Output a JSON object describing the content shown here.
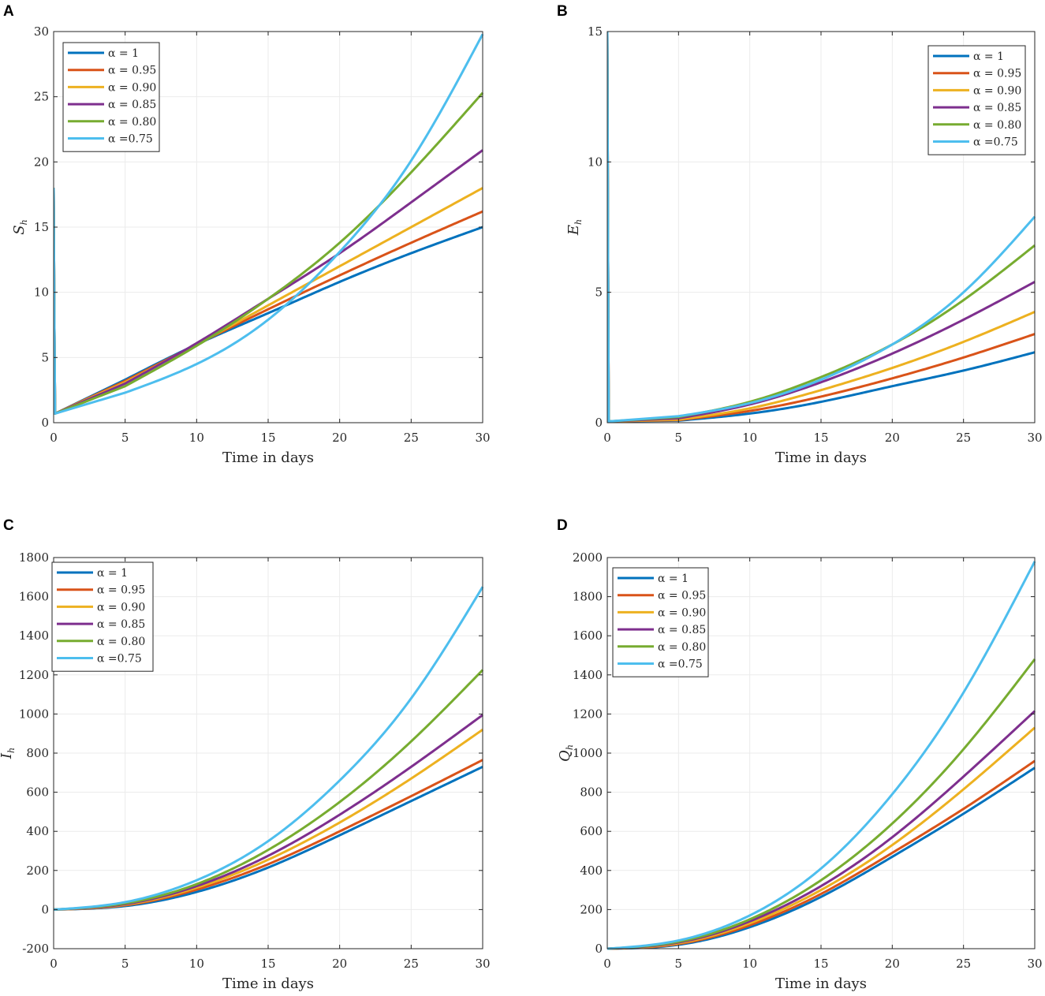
{
  "chart_data": [
    {
      "panel": "A",
      "type": "line",
      "xlabel": "Time in days",
      "ylabel": "S",
      "ylabel_sub": "h",
      "xlim": [
        0,
        30
      ],
      "ylim": [
        0,
        30
      ],
      "xticks": [
        "0",
        "5",
        "10",
        "15",
        "20",
        "25",
        "30"
      ],
      "yticks": [
        "0",
        "5",
        "10",
        "15",
        "20",
        "25",
        "30"
      ],
      "legend_position": "top-left",
      "series": [
        {
          "name": "α = 1",
          "color": "#0072BD",
          "x": [
            0,
            0.05,
            0.1,
            5,
            10,
            15,
            20,
            25,
            30
          ],
          "y": [
            18,
            8,
            0.7,
            3.3,
            6.0,
            8.4,
            10.8,
            13.0,
            15.0
          ]
        },
        {
          "name": "α = 0.95",
          "color": "#D95319",
          "x": [
            0,
            0.05,
            0.1,
            5,
            10,
            15,
            20,
            25,
            30
          ],
          "y": [
            18,
            8,
            0.7,
            3.2,
            6.0,
            8.7,
            11.3,
            13.8,
            16.2
          ]
        },
        {
          "name": "α = 0.90",
          "color": "#EDB120",
          "x": [
            0,
            0.05,
            0.1,
            5,
            10,
            15,
            20,
            25,
            30
          ],
          "y": [
            18,
            8,
            0.7,
            3.1,
            6.0,
            9.0,
            12.0,
            15.0,
            18.0
          ]
        },
        {
          "name": "α = 0.85",
          "color": "#7E2F8E",
          "x": [
            0,
            0.05,
            0.1,
            5,
            10,
            15,
            20,
            25,
            30
          ],
          "y": [
            18,
            8,
            0.7,
            3.0,
            6.1,
            9.5,
            13.0,
            16.9,
            20.9
          ]
        },
        {
          "name": "α = 0.80",
          "color": "#77AC30",
          "x": [
            0,
            0.05,
            0.1,
            5,
            10,
            15,
            20,
            25,
            30
          ],
          "y": [
            18,
            8,
            0.7,
            2.8,
            5.9,
            9.5,
            13.8,
            19.2,
            25.3
          ]
        },
        {
          "name": "α =0.75",
          "color": "#4DBEEE",
          "x": [
            0,
            0.05,
            0.1,
            5,
            10,
            15,
            20,
            25,
            30
          ],
          "y": [
            18,
            8,
            0.7,
            2.3,
            4.5,
            7.9,
            13.1,
            20.1,
            29.8
          ]
        }
      ]
    },
    {
      "panel": "B",
      "type": "line",
      "xlabel": "Time in days",
      "ylabel": "E",
      "ylabel_sub": "h",
      "xlim": [
        0,
        30
      ],
      "ylim": [
        0,
        15
      ],
      "xticks": [
        "0",
        "5",
        "10",
        "15",
        "20",
        "25",
        "30"
      ],
      "yticks": [
        "0",
        "5",
        "10",
        "15"
      ],
      "legend_position": "top-right",
      "series": [
        {
          "name": "α = 1",
          "color": "#0072BD",
          "x": [
            0,
            0.05,
            0.1,
            5,
            10,
            15,
            20,
            25,
            30
          ],
          "y": [
            15,
            7,
            0.05,
            0.08,
            0.35,
            0.8,
            1.4,
            2.0,
            2.7
          ]
        },
        {
          "name": "α = 0.95",
          "color": "#D95319",
          "x": [
            0,
            0.05,
            0.1,
            5,
            10,
            15,
            20,
            25,
            30
          ],
          "y": [
            15,
            7,
            0.05,
            0.1,
            0.45,
            1.0,
            1.7,
            2.5,
            3.4
          ]
        },
        {
          "name": "α = 0.90",
          "color": "#EDB120",
          "x": [
            0,
            0.05,
            0.1,
            5,
            10,
            15,
            20,
            25,
            30
          ],
          "y": [
            15,
            7,
            0.05,
            0.12,
            0.55,
            1.25,
            2.1,
            3.1,
            4.25
          ]
        },
        {
          "name": "α = 0.85",
          "color": "#7E2F8E",
          "x": [
            0,
            0.05,
            0.1,
            5,
            10,
            15,
            20,
            25,
            30
          ],
          "y": [
            15,
            7,
            0.05,
            0.17,
            0.7,
            1.55,
            2.65,
            3.95,
            5.4
          ]
        },
        {
          "name": "α = 0.80",
          "color": "#77AC30",
          "x": [
            0,
            0.05,
            0.1,
            5,
            10,
            15,
            20,
            25,
            30
          ],
          "y": [
            15,
            7,
            0.05,
            0.22,
            0.8,
            1.75,
            3.0,
            4.7,
            6.8
          ]
        },
        {
          "name": "α =0.75",
          "color": "#4DBEEE",
          "x": [
            0,
            0.05,
            0.1,
            5,
            10,
            15,
            20,
            25,
            30
          ],
          "y": [
            15,
            7,
            0.05,
            0.25,
            0.75,
            1.65,
            3.0,
            5.0,
            7.9
          ]
        }
      ]
    },
    {
      "panel": "C",
      "type": "line",
      "xlabel": "Time in days",
      "ylabel": "I",
      "ylabel_sub": "h",
      "xlim": [
        0,
        30
      ],
      "ylim": [
        -200,
        1800
      ],
      "xticks": [
        "0",
        "5",
        "10",
        "15",
        "20",
        "25",
        "30"
      ],
      "yticks": [
        "-200",
        "0",
        "200",
        "400",
        "600",
        "800",
        "1000",
        "1200",
        "1400",
        "1600",
        "1800"
      ],
      "legend_position": "top-left",
      "series": [
        {
          "name": "α = 1",
          "color": "#0072BD",
          "x": [
            0,
            5,
            10,
            15,
            20,
            25,
            30
          ],
          "y": [
            0,
            18,
            90,
            215,
            380,
            555,
            730
          ]
        },
        {
          "name": "α = 0.95",
          "color": "#D95319",
          "x": [
            0,
            5,
            10,
            15,
            20,
            25,
            30
          ],
          "y": [
            0,
            22,
            102,
            232,
            400,
            580,
            765
          ]
        },
        {
          "name": "α = 0.90",
          "color": "#EDB120",
          "x": [
            0,
            5,
            10,
            15,
            20,
            25,
            30
          ],
          "y": [
            0,
            25,
            112,
            255,
            445,
            670,
            920
          ]
        },
        {
          "name": "α = 0.85",
          "color": "#7E2F8E",
          "x": [
            0,
            5,
            10,
            15,
            20,
            25,
            30
          ],
          "y": [
            0,
            28,
            120,
            275,
            485,
            730,
            995
          ]
        },
        {
          "name": "α = 0.80",
          "color": "#77AC30",
          "x": [
            0,
            5,
            10,
            15,
            20,
            25,
            30
          ],
          "y": [
            0,
            32,
            130,
            305,
            550,
            860,
            1225
          ]
        },
        {
          "name": "α =0.75",
          "color": "#4DBEEE",
          "x": [
            0,
            5,
            10,
            15,
            20,
            25,
            30
          ],
          "y": [
            0,
            38,
            150,
            350,
            660,
            1080,
            1650
          ]
        }
      ]
    },
    {
      "panel": "D",
      "type": "line",
      "xlabel": "Time in days",
      "ylabel": "Q",
      "ylabel_sub": "h",
      "xlim": [
        0,
        30
      ],
      "ylim": [
        0,
        2000
      ],
      "xticks": [
        "0",
        "5",
        "10",
        "15",
        "20",
        "25",
        "30"
      ],
      "yticks": [
        "0",
        "200",
        "400",
        "600",
        "800",
        "1000",
        "1200",
        "1400",
        "1600",
        "1800",
        "2000"
      ],
      "legend_position": "top-left",
      "series": [
        {
          "name": "α = 1",
          "color": "#0072BD",
          "x": [
            0,
            5,
            10,
            15,
            20,
            25,
            30
          ],
          "y": [
            0,
            20,
            110,
            265,
            470,
            690,
            925
          ]
        },
        {
          "name": "α = 0.95",
          "color": "#D95319",
          "x": [
            0,
            5,
            10,
            15,
            20,
            25,
            30
          ],
          "y": [
            0,
            24,
            120,
            280,
            490,
            715,
            960
          ]
        },
        {
          "name": "α = 0.90",
          "color": "#EDB120",
          "x": [
            0,
            5,
            10,
            15,
            20,
            25,
            30
          ],
          "y": [
            0,
            28,
            130,
            300,
            530,
            815,
            1130
          ]
        },
        {
          "name": "α = 0.85",
          "color": "#7E2F8E",
          "x": [
            0,
            5,
            10,
            15,
            20,
            25,
            30
          ],
          "y": [
            0,
            32,
            140,
            320,
            570,
            880,
            1215
          ]
        },
        {
          "name": "α = 0.80",
          "color": "#77AC30",
          "x": [
            0,
            5,
            10,
            15,
            20,
            25,
            30
          ],
          "y": [
            0,
            36,
            150,
            350,
            640,
            1020,
            1480
          ]
        },
        {
          "name": "α =0.75",
          "color": "#4DBEEE",
          "x": [
            0,
            5,
            10,
            15,
            20,
            25,
            30
          ],
          "y": [
            0,
            42,
            170,
            410,
            790,
            1310,
            1980
          ]
        }
      ]
    }
  ]
}
